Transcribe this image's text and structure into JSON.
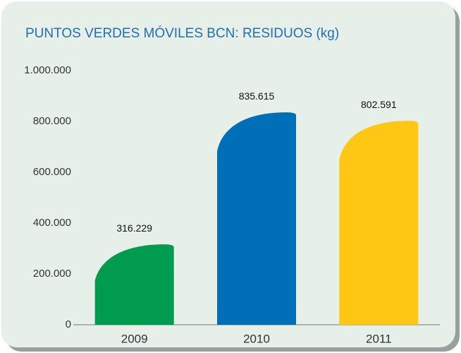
{
  "chart_data": {
    "type": "bar",
    "title": "PUNTOS VERDES MÓVILES BCN: RESIDUOS (kg)",
    "categories": [
      "2009",
      "2010",
      "2011"
    ],
    "values": [
      316229,
      835615,
      802591
    ],
    "value_labels": [
      "316.229",
      "835.615",
      "802.591"
    ],
    "colors": [
      "#009b4f",
      "#006fb7",
      "#fdc714"
    ],
    "ylim": [
      0,
      1000000
    ],
    "yticks": [
      0,
      {
        "value": 200000,
        "label": "200.000"
      },
      {
        "value": 400000,
        "label": "400.000"
      },
      {
        "value": 600000,
        "label": "600.000"
      },
      {
        "value": 800000,
        "label": "800.000"
      },
      {
        "value": 1000000,
        "label": "1.000.000"
      }
    ],
    "grid": false
  }
}
